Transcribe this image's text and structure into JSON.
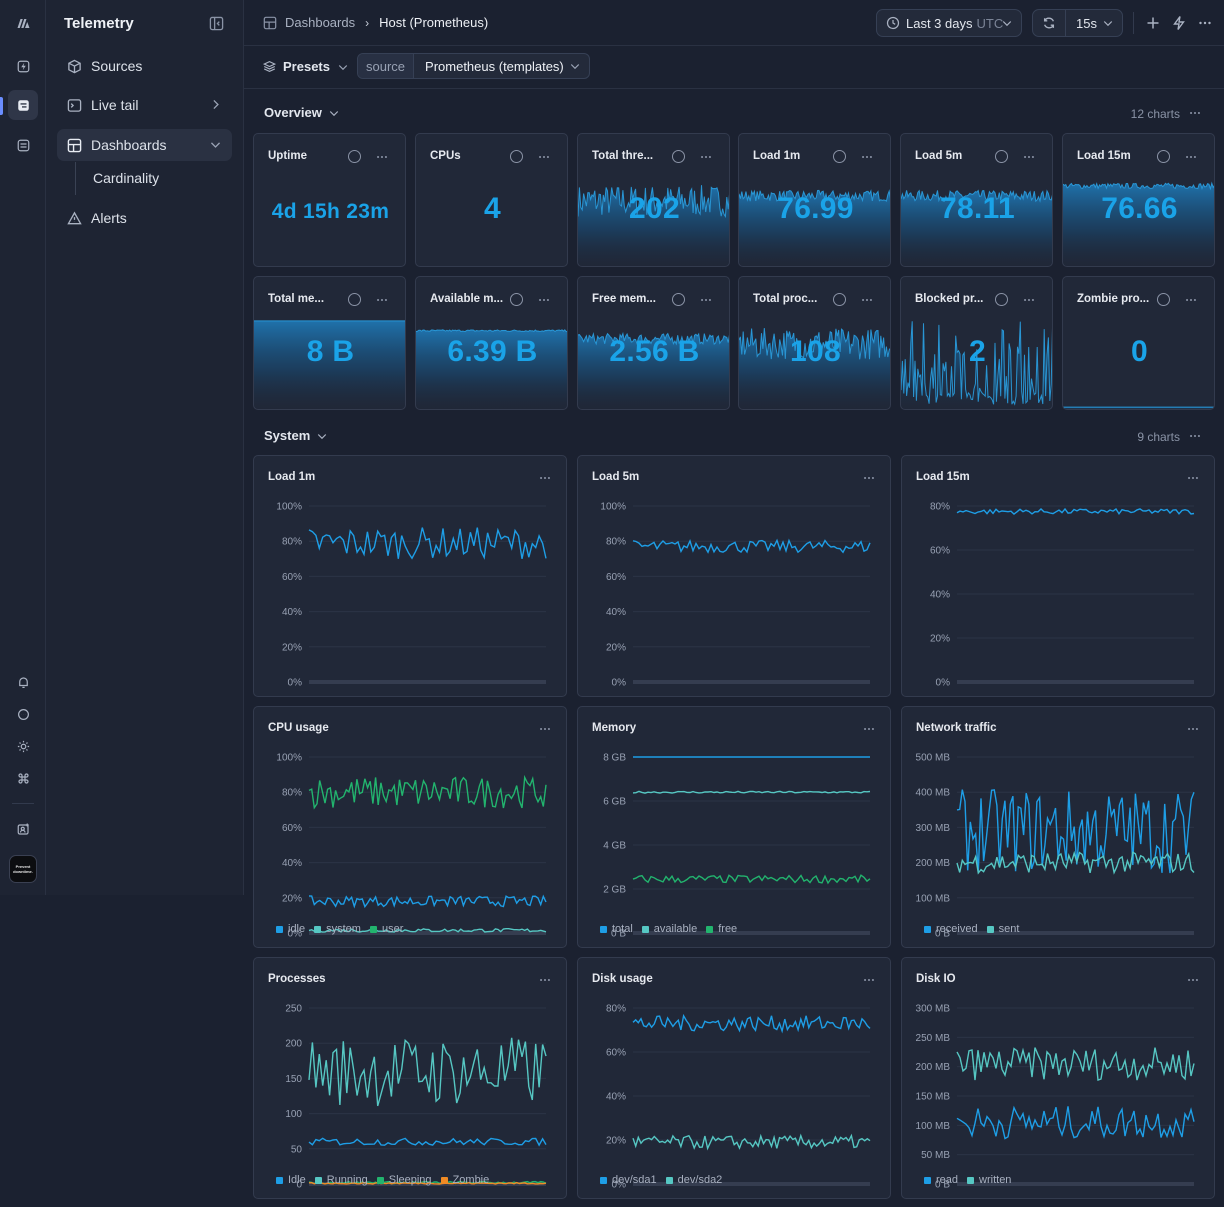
{
  "app": {
    "title": "Telemetry",
    "brand_mark_text": "Prevent downtime."
  },
  "sidebar": {
    "items": [
      {
        "label": "Sources",
        "icon": "cube-icon"
      },
      {
        "label": "Live tail",
        "icon": "terminal-icon"
      },
      {
        "label": "Dashboards",
        "icon": "dashboard-icon"
      },
      {
        "label": "Alerts",
        "icon": "warning-icon"
      }
    ],
    "sub_items": [
      {
        "label": "Cardinality"
      }
    ]
  },
  "header": {
    "breadcrumb_root": "Dashboards",
    "breadcrumb_current": "Host (Prometheus)",
    "time_range": "Last 3 days",
    "timezone": "UTC",
    "refresh_interval": "15s"
  },
  "filters": {
    "presets_label": "Presets",
    "source_label": "source",
    "source_value": "Prometheus (templates)"
  },
  "sections": [
    {
      "title": "Overview",
      "count": "12 charts"
    },
    {
      "title": "System",
      "count": "9 charts"
    }
  ],
  "stats": [
    {
      "title": "Uptime",
      "value": "4d 15h 23m",
      "spark": "none"
    },
    {
      "title": "CPUs",
      "value": "4",
      "spark": "none"
    },
    {
      "title": "Total thre...",
      "value": "202",
      "spark": "noisy-high"
    },
    {
      "title": "Load 1m",
      "value": "76.99",
      "spark": "band-mid"
    },
    {
      "title": "Load 5m",
      "value": "78.11",
      "spark": "band-mid"
    },
    {
      "title": "Load 15m",
      "value": "76.66",
      "spark": "band-high"
    },
    {
      "title": "Total me...",
      "value": "8 B",
      "spark": "flat-top"
    },
    {
      "title": "Available m...",
      "value": "6.39 B",
      "spark": "flat-mid"
    },
    {
      "title": "Free mem...",
      "value": "2.56 B",
      "spark": "band-mid"
    },
    {
      "title": "Total proc...",
      "value": "108",
      "spark": "noisy-high"
    },
    {
      "title": "Blocked pr...",
      "value": "2",
      "spark": "spiky"
    },
    {
      "title": "Zombie pro...",
      "value": "0",
      "spark": "baseline"
    }
  ],
  "chart_data": [
    {
      "title": "Load 1m",
      "type": "line",
      "yticks": [
        "0%",
        "20%",
        "40%",
        "60%",
        "80%",
        "100%"
      ],
      "ylim": [
        0,
        100
      ],
      "series": [
        {
          "color": "#1e9ee6",
          "base": 79,
          "amp": 9,
          "n": 70
        }
      ]
    },
    {
      "title": "Load 5m",
      "type": "line",
      "yticks": [
        "0%",
        "20%",
        "40%",
        "60%",
        "80%",
        "100%"
      ],
      "ylim": [
        0,
        100
      ],
      "series": [
        {
          "color": "#1e9ee6",
          "base": 77,
          "amp": 3.5,
          "n": 80
        }
      ]
    },
    {
      "title": "Load 15m",
      "type": "line",
      "yticks": [
        "0%",
        "20%",
        "40%",
        "60%",
        "80%"
      ],
      "ylim": [
        0,
        80
      ],
      "series": [
        {
          "color": "#1e9ee6",
          "base": 77.5,
          "amp": 1.2,
          "n": 80
        }
      ]
    },
    {
      "title": "CPU usage",
      "type": "line",
      "yticks": [
        "0%",
        "20%",
        "40%",
        "60%",
        "80%",
        "100%"
      ],
      "ylim": [
        0,
        100
      ],
      "legend": [
        {
          "name": "idle",
          "color": "#1e9ee6"
        },
        {
          "name": "system",
          "color": "#56c7c3"
        },
        {
          "name": "user",
          "color": "#22b46e"
        }
      ],
      "series": [
        {
          "color": "#22b46e",
          "base": 80,
          "amp": 9,
          "n": 90
        },
        {
          "color": "#1e9ee6",
          "base": 18,
          "amp": 3,
          "n": 90
        },
        {
          "color": "#56c7c3",
          "base": 1.5,
          "amp": 1,
          "n": 90
        }
      ]
    },
    {
      "title": "Memory",
      "type": "line",
      "yticks": [
        "0 B",
        "2 GB",
        "4 GB",
        "6 GB",
        "8 GB"
      ],
      "ylim": [
        0,
        8
      ],
      "legend": [
        {
          "name": "total",
          "color": "#1e9ee6"
        },
        {
          "name": "available",
          "color": "#56c7c3"
        },
        {
          "name": "free",
          "color": "#22b46e"
        }
      ],
      "series": [
        {
          "color": "#1e9ee6",
          "base": 8,
          "amp": 0,
          "n": 60
        },
        {
          "color": "#56c7c3",
          "base": 6.4,
          "amp": 0.04,
          "n": 80
        },
        {
          "color": "#22b46e",
          "base": 2.45,
          "amp": 0.18,
          "n": 80
        }
      ]
    },
    {
      "title": "Network traffic",
      "type": "line",
      "yticks": [
        "0 B",
        "100 MB",
        "200 MB",
        "300 MB",
        "400 MB",
        "500 MB"
      ],
      "ylim": [
        0,
        500
      ],
      "legend": [
        {
          "name": "received",
          "color": "#1e9ee6"
        },
        {
          "name": "sent",
          "color": "#56c7c3"
        }
      ],
      "series": [
        {
          "color": "#1e9ee6",
          "base": 290,
          "amp": 120,
          "n": 90
        },
        {
          "color": "#56c7c3",
          "base": 200,
          "amp": 30,
          "n": 90
        }
      ]
    },
    {
      "title": "Processes",
      "type": "line",
      "yticks": [
        "0",
        "50",
        "100",
        "150",
        "200",
        "250"
      ],
      "ylim": [
        0,
        250
      ],
      "legend": [
        {
          "name": "Idle",
          "color": "#1e9ee6"
        },
        {
          "name": "Running",
          "color": "#56c7c3"
        },
        {
          "name": "Sleeping",
          "color": "#22b46e"
        },
        {
          "name": "Zombie",
          "color": "#f08a24"
        }
      ],
      "series": [
        {
          "color": "#56c7c3",
          "base": 160,
          "amp": 50,
          "n": 70
        },
        {
          "color": "#1e9ee6",
          "base": 60,
          "amp": 5,
          "n": 70
        },
        {
          "color": "#22b46e",
          "base": 2,
          "amp": 1.5,
          "n": 90
        },
        {
          "color": "#f08a24",
          "base": 1,
          "amp": 1,
          "n": 90
        }
      ]
    },
    {
      "title": "Disk usage",
      "type": "line",
      "yticks": [
        "0%",
        "20%",
        "40%",
        "60%",
        "80%"
      ],
      "ylim": [
        0,
        80
      ],
      "legend": [
        {
          "name": "dev/sda1",
          "color": "#1e9ee6"
        },
        {
          "name": "dev/sda2",
          "color": "#56c7c3"
        }
      ],
      "series": [
        {
          "color": "#1e9ee6",
          "base": 73,
          "amp": 3.5,
          "n": 90
        },
        {
          "color": "#56c7c3",
          "base": 19,
          "amp": 3,
          "n": 90
        }
      ]
    },
    {
      "title": "Disk IO",
      "type": "line",
      "yticks": [
        "0 B",
        "50 MB",
        "100 MB",
        "150 MB",
        "200 MB",
        "250 MB",
        "300 MB"
      ],
      "ylim": [
        0,
        300
      ],
      "legend": [
        {
          "name": "read",
          "color": "#1e9ee6"
        },
        {
          "name": "written",
          "color": "#56c7c3"
        }
      ],
      "series": [
        {
          "color": "#56c7c3",
          "base": 205,
          "amp": 28,
          "n": 80
        },
        {
          "color": "#1e9ee6",
          "base": 105,
          "amp": 28,
          "n": 80
        }
      ]
    }
  ]
}
